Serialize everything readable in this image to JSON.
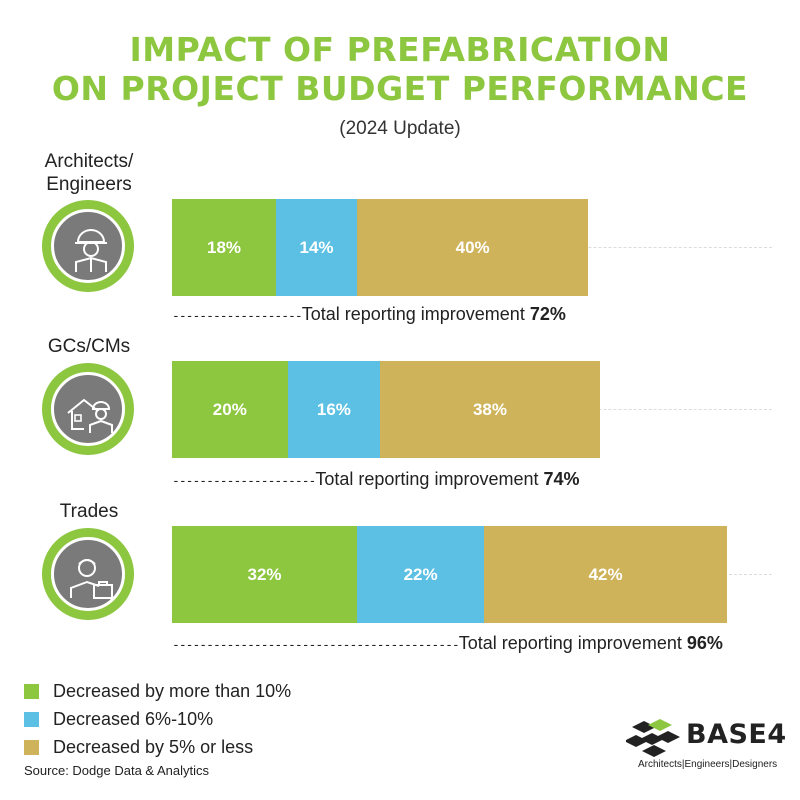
{
  "title_line1": "IMPACT OF PREFABRICATION",
  "title_line2": "ON PROJECT BUDGET PERFORMANCE",
  "subtitle": "(2024 Update)",
  "colors": {
    "title": "#8dc63f",
    "green": "#8dc63f",
    "blue": "#5bc0e3",
    "gold": "#cfb35a",
    "icon_ring": "#8dc63f",
    "icon_fill": "#7a7a7a"
  },
  "chart_data": {
    "type": "bar",
    "orientation": "horizontal",
    "stacked": true,
    "categories": [
      "Architects/ Engineers",
      "GCs/CMs",
      "Trades"
    ],
    "series": [
      {
        "name": "Decreased by more than 10%",
        "values": [
          18,
          20,
          32
        ],
        "labels": [
          "18%",
          "20%",
          "32%"
        ]
      },
      {
        "name": "Decreased 6%-10%",
        "values": [
          14,
          16,
          22
        ],
        "labels": [
          "14%",
          "16%",
          "22%"
        ]
      },
      {
        "name": "Decreased by 5% or less",
        "values": [
          40,
          38,
          42
        ],
        "labels": [
          "40%",
          "38%",
          "42%"
        ]
      }
    ],
    "totals": [
      72,
      74,
      96
    ],
    "xlim": [
      0,
      100
    ],
    "legend_position": "bottom-left"
  },
  "groups": [
    {
      "label_line1": "Architects/",
      "label_line2": "Engineers",
      "icon": "engineer-icon",
      "total_text": "Total reporting improvement",
      "total_value": "72%"
    },
    {
      "label_line1": "GCs/CMs",
      "label_line2": "",
      "icon": "contractor-house-icon",
      "total_text": "Total reporting improvement",
      "total_value": "74%"
    },
    {
      "label_line1": "Trades",
      "label_line2": "",
      "icon": "tradesman-briefcase-icon",
      "total_text": "Total reporting improvement",
      "total_value": "96%"
    }
  ],
  "legend": [
    {
      "label": "Decreased by more than 10%",
      "color": "#8dc63f"
    },
    {
      "label": "Decreased 6%-10%",
      "color": "#5bc0e3"
    },
    {
      "label": "Decreased by 5% or less",
      "color": "#cfb35a"
    }
  ],
  "source": "Source: Dodge Data & Analytics",
  "logo": {
    "wordmark": "BASE4",
    "tagline": "Architects|Engineers|Designers"
  }
}
